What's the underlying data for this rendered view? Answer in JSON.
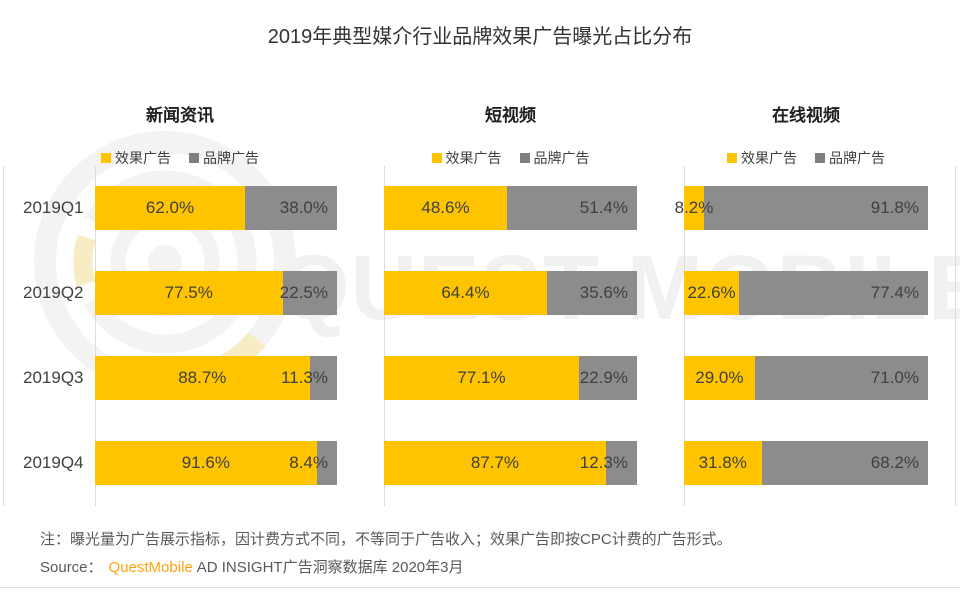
{
  "title": "2019年典型媒介行业品牌效果广告曝光占比分布",
  "watermark": {
    "text": "QUEST MOBILE"
  },
  "colors": {
    "effect": "#FFC400",
    "brand": "#8C8C8C",
    "legend_effect": "#FFC400",
    "legend_brand": "#7F7F7F",
    "accent_orange": "#FFA40E",
    "axis_line": "#DCDCDC"
  },
  "chart_data": {
    "type": "bar",
    "orientation": "horizontal",
    "stacked": true,
    "value_unit": "%",
    "xlim": [
      0,
      100
    ],
    "grid": false,
    "legend_position": "top-center",
    "categories": [
      "2019Q1",
      "2019Q2",
      "2019Q3",
      "2019Q4"
    ],
    "legend": [
      "效果广告",
      "品牌广告"
    ],
    "groups": [
      {
        "title": "新闻资讯",
        "series": [
          {
            "name": "效果广告",
            "color_key": "effect",
            "values": [
              62.0,
              77.5,
              88.7,
              91.6
            ]
          },
          {
            "name": "品牌广告",
            "color_key": "brand",
            "values": [
              38.0,
              22.5,
              11.3,
              8.4
            ]
          }
        ]
      },
      {
        "title": "短视频",
        "series": [
          {
            "name": "效果广告",
            "color_key": "effect",
            "values": [
              48.6,
              64.4,
              77.1,
              87.7
            ]
          },
          {
            "name": "品牌广告",
            "color_key": "brand",
            "values": [
              51.4,
              35.6,
              22.9,
              12.3
            ]
          }
        ]
      },
      {
        "title": "在线视频",
        "series": [
          {
            "name": "效果广告",
            "color_key": "effect",
            "values": [
              8.2,
              22.6,
              29.0,
              31.8
            ]
          },
          {
            "name": "品牌广告",
            "color_key": "brand",
            "values": [
              91.8,
              77.4,
              71.0,
              68.2
            ]
          }
        ]
      }
    ]
  },
  "note": "注：曝光量为广告展示指标，因计费方式不同，不等同于广告收入；效果广告即按CPC计费的广告形式。",
  "source": {
    "label": "Source：",
    "brand": "QuestMobile",
    "suffix": "AD INSIGHT广告洞察数据库 2020年3月"
  }
}
